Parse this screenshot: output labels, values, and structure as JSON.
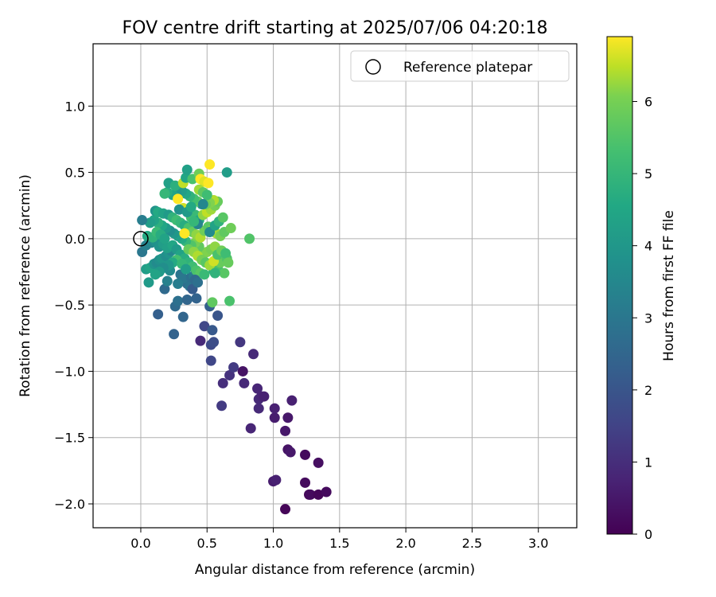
{
  "chart_data": {
    "type": "scatter",
    "title": "FOV centre drift starting at 2025/07/06 04:20:18",
    "xlabel": "Angular distance from reference (arcmin)",
    "ylabel": "Rotation from reference (arcmin)",
    "xlim": [
      -0.36,
      3.29
    ],
    "ylim": [
      -2.18,
      1.47
    ],
    "xticks": [
      0.0,
      0.5,
      1.0,
      1.5,
      2.0,
      2.5,
      3.0
    ],
    "xtick_labels": [
      "0.0",
      "0.5",
      "1.0",
      "1.5",
      "2.0",
      "2.5",
      "3.0"
    ],
    "yticks": [
      -2.0,
      -1.5,
      -1.0,
      -0.5,
      0.0,
      0.5,
      1.0
    ],
    "ytick_labels": [
      "−2.0",
      "−1.5",
      "−1.0",
      "−0.5",
      "0.0",
      "0.5",
      "1.0"
    ],
    "grid": true,
    "colormap": "viridis",
    "colorbar": {
      "label": "Hours from first FF file",
      "range": [
        0,
        6.9
      ],
      "ticks": [
        0,
        1,
        2,
        3,
        4,
        5,
        6
      ],
      "tick_labels": [
        "0",
        "1",
        "2",
        "3",
        "4",
        "5",
        "6"
      ]
    },
    "legend": {
      "position": "top-right",
      "entries": [
        "Reference platepar"
      ]
    },
    "reference_point": {
      "x": 0.0,
      "y": 0.0
    },
    "points": [
      {
        "x": 1.09,
        "y": -2.04,
        "c": 0.1
      },
      {
        "x": 1.0,
        "y": -1.83,
        "c": 0.6
      },
      {
        "x": 1.02,
        "y": -1.82,
        "c": 0.7
      },
      {
        "x": 1.24,
        "y": -1.84,
        "c": 0.2
      },
      {
        "x": 1.27,
        "y": -1.93,
        "c": 0.1
      },
      {
        "x": 1.28,
        "y": -1.93,
        "c": 0.2
      },
      {
        "x": 1.34,
        "y": -1.93,
        "c": 0.1
      },
      {
        "x": 1.4,
        "y": -1.91,
        "c": 0.2
      },
      {
        "x": 1.34,
        "y": -1.69,
        "c": 0.3
      },
      {
        "x": 1.24,
        "y": -1.63,
        "c": 0.2
      },
      {
        "x": 1.11,
        "y": -1.59,
        "c": 0.4
      },
      {
        "x": 1.13,
        "y": -1.61,
        "c": 0.5
      },
      {
        "x": 1.09,
        "y": -1.45,
        "c": 0.5
      },
      {
        "x": 1.01,
        "y": -1.35,
        "c": 0.6
      },
      {
        "x": 1.11,
        "y": -1.35,
        "c": 0.5
      },
      {
        "x": 1.01,
        "y": -1.28,
        "c": 0.7
      },
      {
        "x": 0.83,
        "y": -1.43,
        "c": 0.8
      },
      {
        "x": 0.89,
        "y": -1.28,
        "c": 0.9
      },
      {
        "x": 0.89,
        "y": -1.21,
        "c": 0.9
      },
      {
        "x": 0.91,
        "y": -1.19,
        "c": 0.8
      },
      {
        "x": 0.93,
        "y": -1.19,
        "c": 0.7
      },
      {
        "x": 0.88,
        "y": -1.13,
        "c": 0.8
      },
      {
        "x": 1.14,
        "y": -1.22,
        "c": 0.7
      },
      {
        "x": 0.78,
        "y": -1.09,
        "c": 0.9
      },
      {
        "x": 0.77,
        "y": -1.0,
        "c": 0.4
      },
      {
        "x": 0.62,
        "y": -1.09,
        "c": 1.0
      },
      {
        "x": 0.67,
        "y": -1.03,
        "c": 1.1
      },
      {
        "x": 0.7,
        "y": -0.97,
        "c": 1.3
      },
      {
        "x": 0.85,
        "y": -0.87,
        "c": 0.9
      },
      {
        "x": 0.75,
        "y": -0.78,
        "c": 1.2
      },
      {
        "x": 0.61,
        "y": -1.26,
        "c": 1.3
      },
      {
        "x": 0.53,
        "y": -0.92,
        "c": 1.6
      },
      {
        "x": 0.45,
        "y": -0.77,
        "c": 0.9
      },
      {
        "x": 0.53,
        "y": -0.8,
        "c": 1.7
      },
      {
        "x": 0.55,
        "y": -0.78,
        "c": 1.8
      },
      {
        "x": 0.48,
        "y": -0.66,
        "c": 1.6
      },
      {
        "x": 0.54,
        "y": -0.69,
        "c": 2.1
      },
      {
        "x": 0.58,
        "y": -0.58,
        "c": 2.0
      },
      {
        "x": 0.52,
        "y": -0.51,
        "c": 2.3
      },
      {
        "x": 0.25,
        "y": -0.72,
        "c": 2.4
      },
      {
        "x": 0.32,
        "y": -0.59,
        "c": 2.5
      },
      {
        "x": 0.13,
        "y": -0.57,
        "c": 2.3
      },
      {
        "x": 0.26,
        "y": -0.51,
        "c": 2.6
      },
      {
        "x": 0.28,
        "y": -0.47,
        "c": 2.8
      },
      {
        "x": 0.35,
        "y": -0.46,
        "c": 2.5
      },
      {
        "x": 0.42,
        "y": -0.45,
        "c": 2.4
      },
      {
        "x": 0.18,
        "y": -0.38,
        "c": 2.6
      },
      {
        "x": 0.35,
        "y": -0.34,
        "c": 2.7
      },
      {
        "x": 0.37,
        "y": -0.36,
        "c": 2.9
      },
      {
        "x": 0.39,
        "y": -0.38,
        "c": 2.2
      },
      {
        "x": 0.3,
        "y": -0.27,
        "c": 2.9
      },
      {
        "x": 0.32,
        "y": -0.3,
        "c": 3.0
      },
      {
        "x": 0.38,
        "y": -0.29,
        "c": 2.8
      },
      {
        "x": 0.4,
        "y": -0.28,
        "c": 3.1
      },
      {
        "x": 0.2,
        "y": -0.32,
        "c": 3.3
      },
      {
        "x": 0.22,
        "y": -0.24,
        "c": 3.6
      },
      {
        "x": 0.06,
        "y": -0.33,
        "c": 4.1
      },
      {
        "x": 0.04,
        "y": -0.23,
        "c": 4.2
      },
      {
        "x": 0.07,
        "y": -0.22,
        "c": 4.4
      },
      {
        "x": 0.1,
        "y": -0.19,
        "c": 3.9
      },
      {
        "x": 0.12,
        "y": -0.18,
        "c": 3.6
      },
      {
        "x": 0.14,
        "y": -0.16,
        "c": 3.8
      },
      {
        "x": 0.16,
        "y": -0.15,
        "c": 4.0
      },
      {
        "x": 0.19,
        "y": -0.13,
        "c": 3.7
      },
      {
        "x": 0.21,
        "y": -0.11,
        "c": 3.9
      },
      {
        "x": 0.23,
        "y": -0.09,
        "c": 3.5
      },
      {
        "x": 0.01,
        "y": -0.1,
        "c": 3.0
      },
      {
        "x": 0.04,
        "y": -0.05,
        "c": 3.3
      },
      {
        "x": 0.08,
        "y": -0.03,
        "c": 3.5
      },
      {
        "x": 0.11,
        "y": -0.02,
        "c": 3.8
      },
      {
        "x": 0.14,
        "y": -0.06,
        "c": 3.9
      },
      {
        "x": 0.17,
        "y": -0.04,
        "c": 4.2
      },
      {
        "x": 0.2,
        "y": -0.07,
        "c": 4.3
      },
      {
        "x": 0.24,
        "y": -0.05,
        "c": 4.5
      },
      {
        "x": 0.27,
        "y": -0.08,
        "c": 4.1
      },
      {
        "x": 0.3,
        "y": -0.12,
        "c": 4.4
      },
      {
        "x": 0.33,
        "y": -0.15,
        "c": 4.7
      },
      {
        "x": 0.36,
        "y": -0.18,
        "c": 4.9
      },
      {
        "x": 0.39,
        "y": -0.21,
        "c": 5.2
      },
      {
        "x": 0.42,
        "y": -0.24,
        "c": 5.4
      },
      {
        "x": 0.45,
        "y": -0.26,
        "c": 5.6
      },
      {
        "x": 0.48,
        "y": -0.27,
        "c": 5.1
      },
      {
        "x": 0.55,
        "y": -0.24,
        "c": 4.8
      },
      {
        "x": 0.58,
        "y": -0.22,
        "c": 5.3
      },
      {
        "x": 0.6,
        "y": -0.18,
        "c": 5.8
      },
      {
        "x": 0.63,
        "y": -0.26,
        "c": 5.6
      },
      {
        "x": 0.65,
        "y": -0.15,
        "c": 5.5
      },
      {
        "x": 0.67,
        "y": -0.47,
        "c": 5.4
      },
      {
        "x": 0.54,
        "y": -0.48,
        "c": 5.7
      },
      {
        "x": 0.47,
        "y": -0.12,
        "c": 5.9
      },
      {
        "x": 0.5,
        "y": -0.1,
        "c": 6.1
      },
      {
        "x": 0.53,
        "y": -0.08,
        "c": 6.0
      },
      {
        "x": 0.56,
        "y": -0.06,
        "c": 6.2
      },
      {
        "x": 0.44,
        "y": -0.06,
        "c": 5.7
      },
      {
        "x": 0.41,
        "y": -0.03,
        "c": 6.0
      },
      {
        "x": 0.38,
        "y": -0.05,
        "c": 5.5
      },
      {
        "x": 0.34,
        "y": -0.02,
        "c": 5.0
      },
      {
        "x": 0.31,
        "y": 0.0,
        "c": 4.6
      },
      {
        "x": 0.28,
        "y": 0.02,
        "c": 4.3
      },
      {
        "x": 0.25,
        "y": 0.04,
        "c": 4.0
      },
      {
        "x": 0.22,
        "y": 0.06,
        "c": 3.7
      },
      {
        "x": 0.19,
        "y": 0.08,
        "c": 4.1
      },
      {
        "x": 0.16,
        "y": 0.1,
        "c": 4.5
      },
      {
        "x": 0.13,
        "y": 0.12,
        "c": 4.8
      },
      {
        "x": 0.1,
        "y": 0.14,
        "c": 4.4
      },
      {
        "x": 0.07,
        "y": 0.12,
        "c": 4.2
      },
      {
        "x": 0.05,
        "y": 0.02,
        "c": 4.6
      },
      {
        "x": 0.09,
        "y": 0.01,
        "c": 4.9
      },
      {
        "x": 0.12,
        "y": 0.05,
        "c": 5.1
      },
      {
        "x": 0.15,
        "y": 0.03,
        "c": 4.7
      },
      {
        "x": 0.18,
        "y": 0.0,
        "c": 4.4
      },
      {
        "x": 0.01,
        "y": 0.14,
        "c": 3.2
      },
      {
        "x": 0.11,
        "y": 0.21,
        "c": 3.9
      },
      {
        "x": 0.13,
        "y": 0.2,
        "c": 4.6
      },
      {
        "x": 0.17,
        "y": 0.19,
        "c": 4.4
      },
      {
        "x": 0.21,
        "y": 0.18,
        "c": 4.1
      },
      {
        "x": 0.24,
        "y": 0.16,
        "c": 4.9
      },
      {
        "x": 0.27,
        "y": 0.14,
        "c": 5.2
      },
      {
        "x": 0.3,
        "y": 0.12,
        "c": 5.0
      },
      {
        "x": 0.33,
        "y": 0.1,
        "c": 4.7
      },
      {
        "x": 0.36,
        "y": 0.08,
        "c": 5.4
      },
      {
        "x": 0.39,
        "y": 0.05,
        "c": 5.8
      },
      {
        "x": 0.42,
        "y": 0.03,
        "c": 6.2
      },
      {
        "x": 0.45,
        "y": 0.01,
        "c": 6.4
      },
      {
        "x": 0.48,
        "y": 0.06,
        "c": 5.9
      },
      {
        "x": 0.51,
        "y": 0.09,
        "c": 5.6
      },
      {
        "x": 0.54,
        "y": 0.07,
        "c": 6.1
      },
      {
        "x": 0.57,
        "y": 0.04,
        "c": 6.3
      },
      {
        "x": 0.6,
        "y": 0.02,
        "c": 6.0
      },
      {
        "x": 0.63,
        "y": 0.05,
        "c": 5.7
      },
      {
        "x": 0.68,
        "y": 0.08,
        "c": 5.9
      },
      {
        "x": 0.82,
        "y": 0.0,
        "c": 5.5
      },
      {
        "x": 0.33,
        "y": 0.04,
        "c": 6.9
      },
      {
        "x": 0.38,
        "y": 0.16,
        "c": 5.3
      },
      {
        "x": 0.41,
        "y": 0.18,
        "c": 5.1
      },
      {
        "x": 0.44,
        "y": 0.14,
        "c": 4.6
      },
      {
        "x": 0.47,
        "y": 0.18,
        "c": 6.2
      },
      {
        "x": 0.5,
        "y": 0.2,
        "c": 6.5
      },
      {
        "x": 0.53,
        "y": 0.22,
        "c": 6.3
      },
      {
        "x": 0.56,
        "y": 0.25,
        "c": 6.0
      },
      {
        "x": 0.58,
        "y": 0.28,
        "c": 5.8
      },
      {
        "x": 0.55,
        "y": 0.29,
        "c": 6.4
      },
      {
        "x": 0.52,
        "y": 0.27,
        "c": 6.1
      },
      {
        "x": 0.49,
        "y": 0.26,
        "c": 5.9
      },
      {
        "x": 0.46,
        "y": 0.26,
        "c": 4.0
      },
      {
        "x": 0.43,
        "y": 0.28,
        "c": 5.6
      },
      {
        "x": 0.4,
        "y": 0.3,
        "c": 5.3
      },
      {
        "x": 0.37,
        "y": 0.32,
        "c": 4.9
      },
      {
        "x": 0.34,
        "y": 0.34,
        "c": 4.5
      },
      {
        "x": 0.31,
        "y": 0.36,
        "c": 4.2
      },
      {
        "x": 0.27,
        "y": 0.34,
        "c": 4.0
      },
      {
        "x": 0.24,
        "y": 0.33,
        "c": 4.4
      },
      {
        "x": 0.2,
        "y": 0.35,
        "c": 4.7
      },
      {
        "x": 0.18,
        "y": 0.34,
        "c": 5.0
      },
      {
        "x": 0.21,
        "y": 0.42,
        "c": 4.3
      },
      {
        "x": 0.26,
        "y": 0.4,
        "c": 4.8
      },
      {
        "x": 0.28,
        "y": 0.3,
        "c": 6.9
      },
      {
        "x": 0.32,
        "y": 0.42,
        "c": 6.5
      },
      {
        "x": 0.34,
        "y": 0.46,
        "c": 4.5
      },
      {
        "x": 0.35,
        "y": 0.52,
        "c": 4.3
      },
      {
        "x": 0.39,
        "y": 0.45,
        "c": 5.4
      },
      {
        "x": 0.44,
        "y": 0.49,
        "c": 5.9
      },
      {
        "x": 0.45,
        "y": 0.45,
        "c": 6.9
      },
      {
        "x": 0.48,
        "y": 0.43,
        "c": 6.7
      },
      {
        "x": 0.51,
        "y": 0.42,
        "c": 6.9
      },
      {
        "x": 0.52,
        "y": 0.56,
        "c": 6.9
      },
      {
        "x": 0.65,
        "y": 0.5,
        "c": 4.2
      },
      {
        "x": 0.44,
        "y": 0.37,
        "c": 6.3
      },
      {
        "x": 0.47,
        "y": 0.35,
        "c": 5.7
      },
      {
        "x": 0.5,
        "y": 0.33,
        "c": 5.2
      },
      {
        "x": 0.32,
        "y": 0.23,
        "c": 6.6
      },
      {
        "x": 0.29,
        "y": 0.22,
        "c": 3.8
      },
      {
        "x": 0.35,
        "y": 0.2,
        "c": 4.1
      },
      {
        "x": 0.38,
        "y": 0.24,
        "c": 4.6
      },
      {
        "x": 0.36,
        "y": -0.08,
        "c": 5.8
      },
      {
        "x": 0.4,
        "y": -0.1,
        "c": 6.2
      },
      {
        "x": 0.43,
        "y": -0.13,
        "c": 6.4
      },
      {
        "x": 0.46,
        "y": -0.16,
        "c": 6.0
      },
      {
        "x": 0.49,
        "y": -0.18,
        "c": 5.6
      },
      {
        "x": 0.52,
        "y": -0.2,
        "c": 6.3
      },
      {
        "x": 0.55,
        "y": -0.17,
        "c": 6.6
      },
      {
        "x": 0.58,
        "y": -0.12,
        "c": 5.4
      },
      {
        "x": 0.61,
        "y": -0.09,
        "c": 5.9
      },
      {
        "x": 0.64,
        "y": -0.11,
        "c": 5.2
      },
      {
        "x": 0.66,
        "y": -0.18,
        "c": 5.8
      },
      {
        "x": 0.52,
        "y": 0.05,
        "c": 3.6
      },
      {
        "x": 0.56,
        "y": 0.1,
        "c": 4.4
      },
      {
        "x": 0.59,
        "y": 0.13,
        "c": 4.9
      },
      {
        "x": 0.62,
        "y": 0.16,
        "c": 5.6
      },
      {
        "x": 0.47,
        "y": 0.26,
        "c": 3.5
      },
      {
        "x": 0.43,
        "y": 0.11,
        "c": 3.4
      },
      {
        "x": 0.4,
        "y": 0.13,
        "c": 5.0
      },
      {
        "x": 0.27,
        "y": -0.16,
        "c": 5.3
      },
      {
        "x": 0.24,
        "y": -0.18,
        "c": 4.6
      },
      {
        "x": 0.21,
        "y": -0.2,
        "c": 4.0
      },
      {
        "x": 0.17,
        "y": -0.22,
        "c": 3.7
      },
      {
        "x": 0.14,
        "y": -0.25,
        "c": 4.1
      },
      {
        "x": 0.11,
        "y": -0.27,
        "c": 4.4
      },
      {
        "x": 0.31,
        "y": -0.19,
        "c": 5.0
      },
      {
        "x": 0.34,
        "y": -0.23,
        "c": 4.2
      },
      {
        "x": 0.28,
        "y": -0.34,
        "c": 3.2
      },
      {
        "x": 0.41,
        "y": -0.31,
        "c": 2.6
      },
      {
        "x": 0.43,
        "y": -0.33,
        "c": 2.8
      },
      {
        "x": 0.56,
        "y": -0.26,
        "c": 4.9
      }
    ]
  }
}
